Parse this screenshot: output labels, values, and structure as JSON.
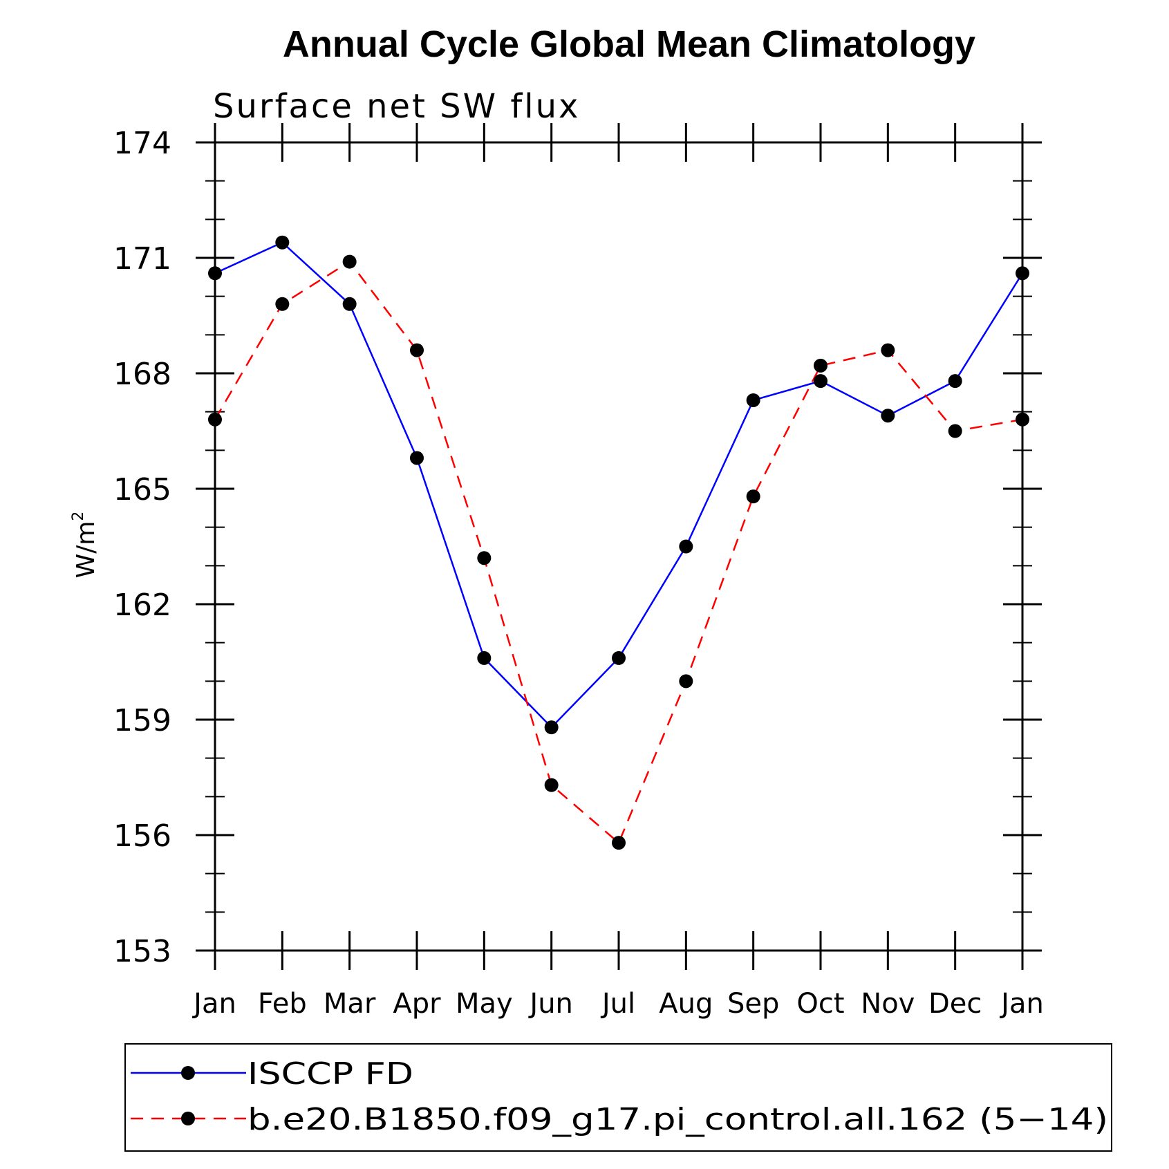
{
  "chart_data": {
    "type": "line",
    "title": "Annual Cycle Global Mean Climatology",
    "subtitle": "Surface net SW flux",
    "ylabel": "W/m",
    "ylabel_superscript": "2",
    "xlabel": "",
    "categories": [
      "Jan",
      "Feb",
      "Mar",
      "Apr",
      "May",
      "Jun",
      "Jul",
      "Aug",
      "Sep",
      "Oct",
      "Nov",
      "Dec",
      "Jan"
    ],
    "ylim": [
      153,
      174
    ],
    "yticks": [
      "153",
      "156",
      "159",
      "162",
      "165",
      "168",
      "171",
      "174"
    ],
    "grid": false,
    "legend_position": "bottom",
    "series": [
      {
        "name": "ISCCP FD",
        "color": "#0000ff",
        "line_style": "solid",
        "marker": "filled-circle",
        "values": [
          170.6,
          171.4,
          169.8,
          165.8,
          160.6,
          158.8,
          160.6,
          163.5,
          167.3,
          167.8,
          166.9,
          167.8,
          170.6
        ]
      },
      {
        "name": "b.e20.B1850.f09_g17.pi_control.all.162 (5−14)",
        "color": "#ff0000",
        "line_style": "dashed",
        "marker": "filled-circle",
        "values": [
          166.8,
          169.8,
          170.9,
          168.6,
          163.2,
          157.3,
          155.8,
          160.0,
          164.8,
          168.2,
          168.6,
          166.5,
          166.8
        ]
      }
    ]
  }
}
